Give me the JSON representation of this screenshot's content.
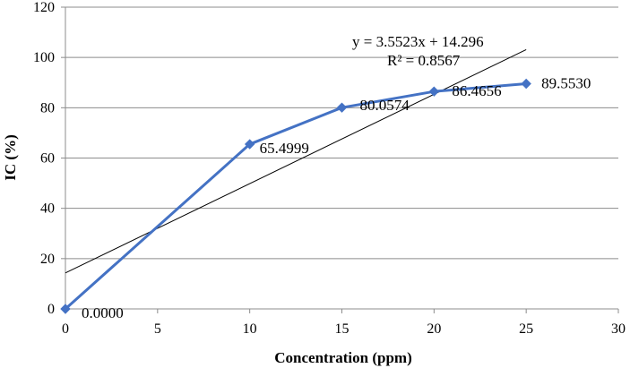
{
  "chart_data": {
    "type": "line",
    "title": "",
    "xlabel": "Concentration (ppm)",
    "ylabel": "IC (%)",
    "xlim": [
      0,
      30
    ],
    "ylim": [
      0,
      120
    ],
    "xticks": [
      0,
      5,
      10,
      15,
      20,
      25,
      30
    ],
    "yticks": [
      0,
      20,
      40,
      60,
      80,
      100,
      120
    ],
    "grid": true,
    "series": [
      {
        "x": [
          0,
          10,
          15,
          20,
          25
        ],
        "y": [
          0.0,
          65.4999,
          80.0574,
          86.4656,
          89.553
        ],
        "labels": [
          "0.0000",
          "65.4999",
          "80.0574",
          "86.4656",
          "89.5530"
        ],
        "color": "#4472c4"
      }
    ],
    "trendline": {
      "slope": 3.5523,
      "intercept": 14.296,
      "x_range": [
        0,
        25
      ],
      "color": "#000000",
      "equation": "y = 3.5523x + 14.296",
      "r_squared": "R² = 0.8567"
    }
  }
}
